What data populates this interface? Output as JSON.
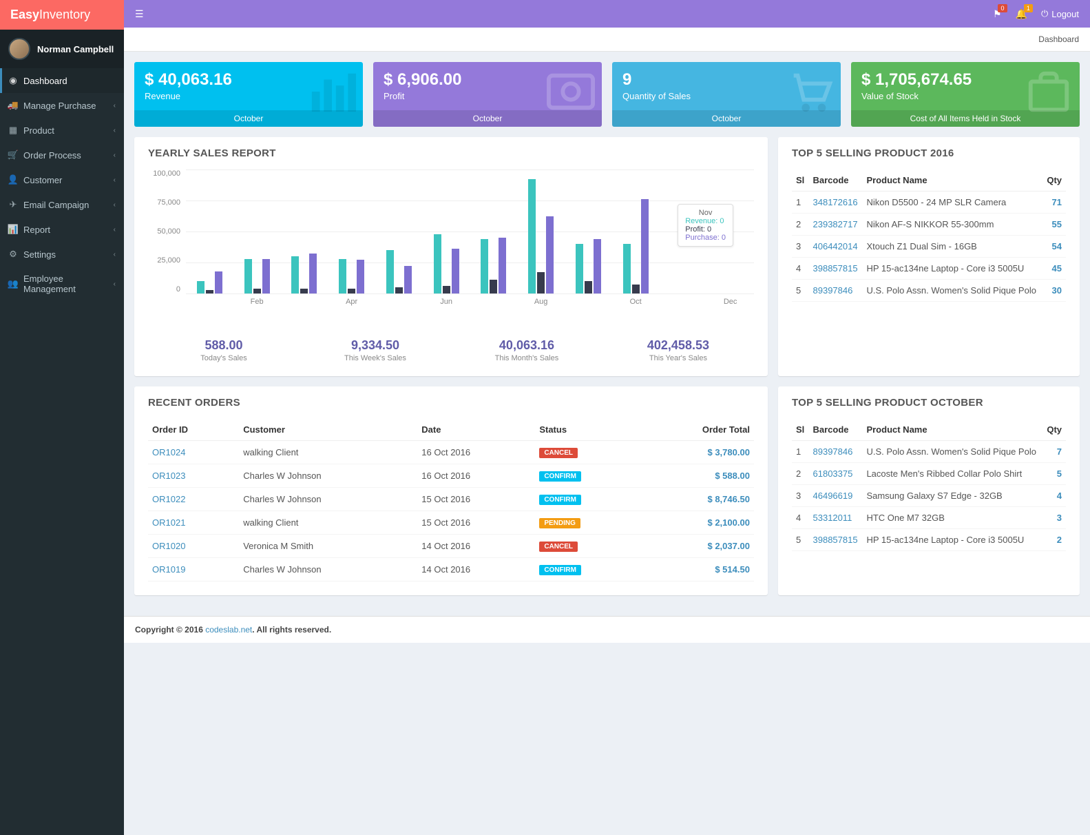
{
  "brand": {
    "bold": "Easy",
    "light": "Inventory"
  },
  "user": {
    "name": "Norman Campbell"
  },
  "topbar": {
    "flag_badge": "0",
    "bell_badge": "1",
    "logout": "Logout"
  },
  "breadcrumb": "Dashboard",
  "sidebar": [
    {
      "label": "Dashboard",
      "icon": "dashboard",
      "active": true,
      "expandable": false
    },
    {
      "label": "Manage Purchase",
      "icon": "truck",
      "expandable": true
    },
    {
      "label": "Product",
      "icon": "grid",
      "expandable": true
    },
    {
      "label": "Order Process",
      "icon": "cart",
      "expandable": true
    },
    {
      "label": "Customer",
      "icon": "user",
      "expandable": true
    },
    {
      "label": "Email Campaign",
      "icon": "plane",
      "expandable": true
    },
    {
      "label": "Report",
      "icon": "stats",
      "expandable": true
    },
    {
      "label": "Settings",
      "icon": "gears",
      "expandable": true
    },
    {
      "label": "Employee Management",
      "icon": "users",
      "expandable": true
    }
  ],
  "stats": [
    {
      "value": "$ 40,063.16",
      "label": "Revenue",
      "footer": "October",
      "bg": "#00c0ef",
      "icon": "bars"
    },
    {
      "value": "$ 6,906.00",
      "label": "Profit",
      "footer": "October",
      "bg": "#9479da",
      "icon": "dollar"
    },
    {
      "value": "9",
      "label": "Quantity of Sales",
      "footer": "October",
      "bg": "#45b6e1",
      "icon": "cart"
    },
    {
      "value": "$ 1,705,674.65",
      "label": "Value of Stock",
      "footer": "Cost of All Items Held in Stock",
      "bg": "#5cb85c",
      "icon": "case"
    }
  ],
  "yearly_chart": {
    "title": "YEARLY SALES REPORT",
    "y_max": 100000,
    "y_ticks": [
      "100,000",
      "75,000",
      "50,000",
      "25,000",
      "0"
    ],
    "x_labels_every_other": [
      "Feb",
      "Apr",
      "Jun",
      "Aug",
      "Oct",
      "Dec"
    ],
    "colors": {
      "revenue": "#3bc4be",
      "profit": "#373b4d",
      "purchase": "#7d6fd0"
    },
    "months": [
      {
        "rev": 10000,
        "prof": 3000,
        "pur": 18000
      },
      {
        "rev": 28000,
        "prof": 4000,
        "pur": 28000
      },
      {
        "rev": 30000,
        "prof": 4000,
        "pur": 32000
      },
      {
        "rev": 28000,
        "prof": 4000,
        "pur": 27000
      },
      {
        "rev": 35000,
        "prof": 5000,
        "pur": 22000
      },
      {
        "rev": 48000,
        "prof": 6000,
        "pur": 36000
      },
      {
        "rev": 44000,
        "prof": 11000,
        "pur": 45000
      },
      {
        "rev": 92000,
        "prof": 17000,
        "pur": 62000
      },
      {
        "rev": 40000,
        "prof": 10000,
        "pur": 44000
      },
      {
        "rev": 40000,
        "prof": 7000,
        "pur": 76000
      },
      {
        "rev": 0,
        "prof": 0,
        "pur": 0
      },
      {
        "rev": 0,
        "prof": 0,
        "pur": 0
      }
    ],
    "tooltip": {
      "title": "Nov",
      "lines": [
        {
          "label": "Revenue: 0",
          "color": "#3bc4be"
        },
        {
          "label": "Profit: 0",
          "color": "#373b4d"
        },
        {
          "label": "Purchase: 0",
          "color": "#7d6fd0"
        }
      ]
    }
  },
  "sales_summary": [
    {
      "value": "588.00",
      "label": "Today's Sales"
    },
    {
      "value": "9,334.50",
      "label": "This Week's Sales"
    },
    {
      "value": "40,063.16",
      "label": "This Month's Sales"
    },
    {
      "value": "402,458.53",
      "label": "This Year's Sales"
    }
  ],
  "top5_2016": {
    "title": "TOP 5 SELLING PRODUCT 2016",
    "headers": {
      "sl": "Sl",
      "barcode": "Barcode",
      "name": "Product Name",
      "qty": "Qty"
    },
    "rows": [
      {
        "sl": "1",
        "barcode": "348172616",
        "name": "Nikon D5500 - 24 MP SLR Camera",
        "qty": "71"
      },
      {
        "sl": "2",
        "barcode": "239382717",
        "name": "Nikon AF-S NIKKOR 55-300mm",
        "qty": "55"
      },
      {
        "sl": "3",
        "barcode": "406442014",
        "name": "Xtouch Z1 Dual Sim - 16GB",
        "qty": "54"
      },
      {
        "sl": "4",
        "barcode": "398857815",
        "name": "HP 15-ac134ne Laptop - Core i3 5005U",
        "qty": "45"
      },
      {
        "sl": "5",
        "barcode": "89397846",
        "name": "U.S. Polo Assn. Women's Solid Pique Polo",
        "qty": "30"
      }
    ]
  },
  "recent_orders": {
    "title": "RECENT ORDERS",
    "headers": {
      "id": "Order ID",
      "customer": "Customer",
      "date": "Date",
      "status": "Status",
      "total": "Order Total"
    },
    "rows": [
      {
        "id": "OR1024",
        "customer": "walking Client",
        "date": "16 Oct 2016",
        "status": "CANCEL",
        "status_color": "#dd4b39",
        "total": "$ 3,780.00"
      },
      {
        "id": "OR1023",
        "customer": "Charles W Johnson",
        "date": "16 Oct 2016",
        "status": "CONFIRM",
        "status_color": "#00c0ef",
        "total": "$ 588.00"
      },
      {
        "id": "OR1022",
        "customer": "Charles W Johnson",
        "date": "15 Oct 2016",
        "status": "CONFIRM",
        "status_color": "#00c0ef",
        "total": "$ 8,746.50"
      },
      {
        "id": "OR1021",
        "customer": "walking Client",
        "date": "15 Oct 2016",
        "status": "PENDING",
        "status_color": "#f39c12",
        "total": "$ 2,100.00"
      },
      {
        "id": "OR1020",
        "customer": "Veronica M Smith",
        "date": "14 Oct 2016",
        "status": "CANCEL",
        "status_color": "#dd4b39",
        "total": "$ 2,037.00"
      },
      {
        "id": "OR1019",
        "customer": "Charles W Johnson",
        "date": "14 Oct 2016",
        "status": "CONFIRM",
        "status_color": "#00c0ef",
        "total": "$ 514.50"
      }
    ]
  },
  "top5_month": {
    "title": "TOP 5 SELLING PRODUCT OCTOBER",
    "headers": {
      "sl": "Sl",
      "barcode": "Barcode",
      "name": "Product Name",
      "qty": "Qty"
    },
    "rows": [
      {
        "sl": "1",
        "barcode": "89397846",
        "name": "U.S. Polo Assn. Women's Solid Pique Polo",
        "qty": "7"
      },
      {
        "sl": "2",
        "barcode": "61803375",
        "name": "Lacoste Men's Ribbed Collar Polo Shirt",
        "qty": "5"
      },
      {
        "sl": "3",
        "barcode": "46496619",
        "name": "Samsung Galaxy S7 Edge - 32GB",
        "qty": "4"
      },
      {
        "sl": "4",
        "barcode": "53312011",
        "name": "HTC One M7 32GB",
        "qty": "3"
      },
      {
        "sl": "5",
        "barcode": "398857815",
        "name": "HP 15-ac134ne Laptop - Core i3 5005U",
        "qty": "2"
      }
    ]
  },
  "footer": {
    "prefix": "Copyright © 2016 ",
    "link": "codeslab.net",
    "suffix": ". All rights reserved."
  }
}
